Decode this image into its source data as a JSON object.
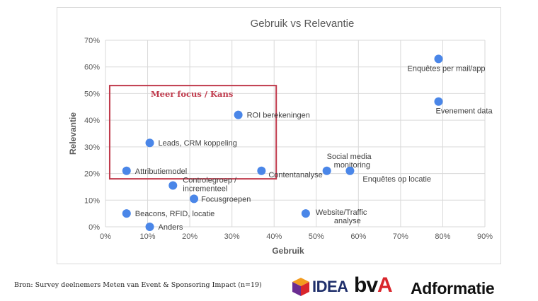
{
  "chart_data": {
    "type": "scatter",
    "title": "Gebruik vs Relevantie",
    "xlabel": "Gebruik",
    "ylabel": "Relevantie",
    "xlim": [
      0,
      0.9
    ],
    "ylim": [
      0,
      0.7
    ],
    "x_ticks": [
      0,
      0.1,
      0.2,
      0.3,
      0.4,
      0.5,
      0.6,
      0.7,
      0.8,
      0.9
    ],
    "y_ticks": [
      0,
      0.1,
      0.2,
      0.3,
      0.4,
      0.5,
      0.6,
      0.7
    ],
    "x_tick_labels": [
      "0%",
      "10%",
      "20%",
      "30%",
      "40%",
      "50%",
      "60%",
      "70%",
      "80%",
      "90%"
    ],
    "y_tick_labels": [
      "0%",
      "10%",
      "20%",
      "30%",
      "40%",
      "50%",
      "60%",
      "70%"
    ],
    "grid": true,
    "marker_color": "#4a86e8",
    "points": [
      {
        "label": "Enquêtes per mail/app",
        "x": 0.79,
        "y": 0.63
      },
      {
        "label": "Evenement data",
        "x": 0.79,
        "y": 0.47
      },
      {
        "label": "ROI berekeningen",
        "x": 0.315,
        "y": 0.42
      },
      {
        "label": "Leads, CRM koppeling",
        "x": 0.105,
        "y": 0.315
      },
      {
        "label": "Attributiemodel",
        "x": 0.05,
        "y": 0.21
      },
      {
        "label": "Contentanalyse",
        "x": 0.37,
        "y": 0.21
      },
      {
        "label": "Social media monitoring",
        "x": 0.525,
        "y": 0.21
      },
      {
        "label": "Enquêtes op locatie",
        "x": 0.58,
        "y": 0.21
      },
      {
        "label": "Controlegroep / incrementeel",
        "x": 0.16,
        "y": 0.155
      },
      {
        "label": "Focusgroepen",
        "x": 0.21,
        "y": 0.105
      },
      {
        "label": "Beacons, RFID, locatie",
        "x": 0.05,
        "y": 0.05
      },
      {
        "label": "Website/Traffic analyse",
        "x": 0.475,
        "y": 0.05
      },
      {
        "label": "Anders",
        "x": 0.105,
        "y": 0.0
      }
    ],
    "annotation": {
      "text": "Meer focus / Kans",
      "color": "#c0394b",
      "x_range": [
        0.01,
        0.405
      ],
      "y_range": [
        0.18,
        0.53
      ]
    }
  },
  "footer": {
    "source": "Bron: Survey deelnemers Meten van Event & Sponsoring Impact (n=19)"
  },
  "logos": {
    "idea": "IDEA",
    "bva_main": "bv",
    "bva_accent": "A",
    "adformatie": "Adformatie"
  }
}
